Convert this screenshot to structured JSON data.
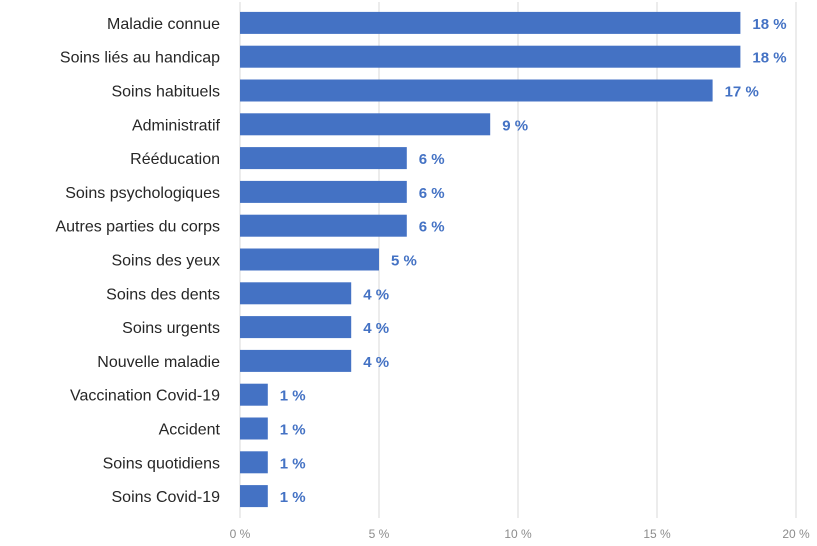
{
  "chart_data": {
    "type": "bar",
    "orientation": "horizontal",
    "title": "",
    "xlabel": "",
    "ylabel": "",
    "categories": [
      "Maladie connue",
      "Soins liés au handicap",
      "Soins habituels",
      "Administratif",
      "Rééducation",
      "Soins psychologiques",
      "Autres parties du corps",
      "Soins des yeux",
      "Soins des dents",
      "Soins urgents",
      "Nouvelle maladie",
      "Vaccination Covid-19",
      "Accident",
      "Soins quotidiens",
      "Soins Covid-19"
    ],
    "values": [
      18,
      18,
      17,
      9,
      6,
      6,
      6,
      5,
      4,
      4,
      4,
      1,
      1,
      1,
      1
    ],
    "value_labels": [
      "18 %",
      "18 %",
      "17 %",
      "9 %",
      "6 %",
      "6 %",
      "6 %",
      "5 %",
      "4 %",
      "4 %",
      "4 %",
      "1 %",
      "1 %",
      "1 %",
      "1 %"
    ],
    "xlim": [
      0,
      20
    ],
    "x_ticks": [
      0,
      5,
      10,
      15,
      20
    ],
    "x_tick_labels": [
      "0 %",
      "5 %",
      "10 %",
      "15 %",
      "20 %"
    ],
    "grid": "vertical",
    "legend": "none",
    "colors": {
      "bar": "#4472C4",
      "value_label": "#4472C4",
      "grid": "#d9d9d9",
      "tick_label": "#8c8c8c",
      "category_label": "#262626"
    }
  }
}
